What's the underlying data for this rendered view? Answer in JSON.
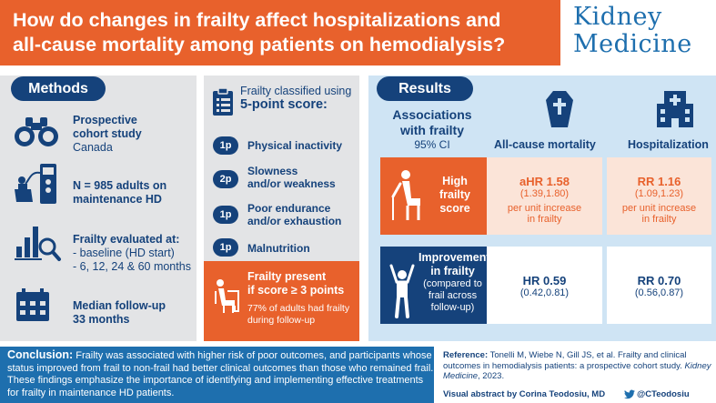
{
  "header": {
    "title_line1": "How do changes in frailty affect hospitalizations and",
    "title_line2": "all-cause mortality among patients on hemodialysis?",
    "logo_line1": "Kidney",
    "logo_line2": "Medicine"
  },
  "methods": {
    "label": "Methods",
    "items": [
      {
        "icon": "binoculars-icon",
        "bold": "Prospective cohort study",
        "line2": "Canada"
      },
      {
        "icon": "dialysis-machine-icon",
        "bold": "N = 985 adults on maintenance HD"
      },
      {
        "icon": "chart-magnifier-icon",
        "bold": "Frailty evaluated at:",
        "line2": "- baseline (HD start)",
        "line3": "- 6, 12, 24 & 60 months"
      },
      {
        "icon": "calendar-icon",
        "bold": "Median follow-up",
        "line2": "33 months"
      }
    ]
  },
  "score": {
    "head_line1": "Frailty classified using",
    "head_line2": "5-point score:",
    "criteria": [
      {
        "points": "1p",
        "text_line1": "Physical inactivity",
        "text_line2": ""
      },
      {
        "points": "2p",
        "text_line1": "Slowness",
        "text_line2": "and/or weakness"
      },
      {
        "points": "1p",
        "text_line1": "Poor endurance",
        "text_line2": "and/or exhaustion"
      },
      {
        "points": "1p",
        "text_line1": "Malnutrition",
        "text_line2": ""
      }
    ],
    "present_line1": "Frailty present",
    "present_line2": "if score ≥ 3 points",
    "present_sub": "77% of adults had frailty during follow-up"
  },
  "results": {
    "label": "Results",
    "assoc_line1": "Associations",
    "assoc_line2": "with frailty",
    "ci": "95% CI",
    "col1": "All-cause mortality",
    "col2": "Hospitalization",
    "row1": {
      "label_line1": "High",
      "label_line2": "frailty",
      "label_line3": "score",
      "mort_value": "aHR 1.58",
      "mort_ci": "(1.39,1.80)",
      "mort_note_line1": "per unit increase",
      "mort_note_line2": "in frailty",
      "hosp_value": "RR 1.16",
      "hosp_ci": "(1.09,1.23)",
      "hosp_note_line1": "per unit increase",
      "hosp_note_line2": "in frailty"
    },
    "row2": {
      "label_line1": "Improvement",
      "label_line2": "in frailty",
      "label_sub1": "(compared to",
      "label_sub2": "frail across",
      "label_sub3": "follow-up)",
      "mort_value": "HR 0.59",
      "mort_ci": "(0.42,0.81)",
      "hosp_value": "RR 0.70",
      "hosp_ci": "(0.56,0.87)"
    }
  },
  "footer": {
    "conclusion_label": "Conclusion:",
    "conclusion_text": "Frailty was associated with higher risk of poor outcomes, and participants whose status improved from frail to non-frail had better clinical outcomes than those who remained frail. These findings emphasize the importance of identifying and implementing effective treatments for frailty in maintenance HD patients.",
    "reference_label": "Reference:",
    "reference_text": "Tonelli M, Wiebe N, Gill JS, et al. Frailty and clinical outcomes in hemodialysis patients: a prospective cohort study.",
    "reference_journal": "Kidney Medicine",
    "reference_year": ", 2023.",
    "author": "Visual abstract by Corina Teodosiu, MD",
    "twitter": "@CTeodosiu"
  },
  "colors": {
    "orange": "#e8612c",
    "navy": "#15427b",
    "blue": "#1e6fae",
    "light_blue": "#cfe4f4",
    "grey": "#e3e4e6"
  }
}
